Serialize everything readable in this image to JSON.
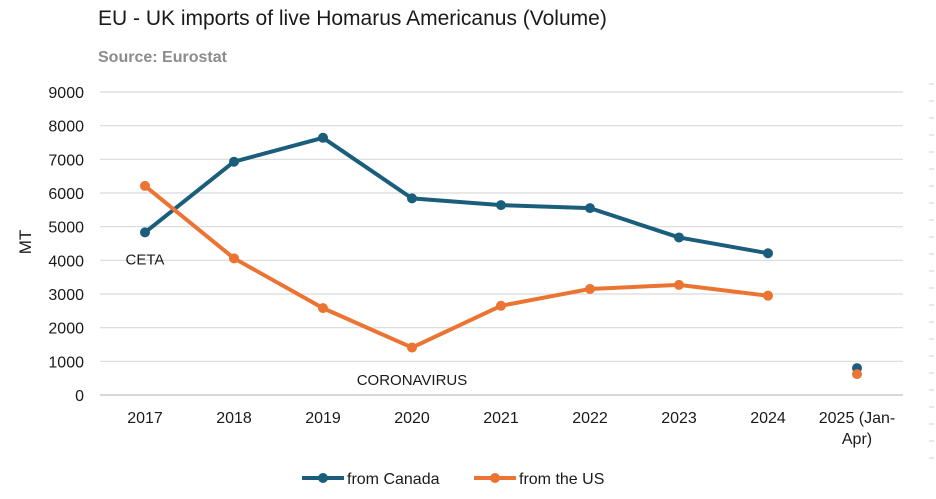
{
  "chart_data": {
    "type": "line",
    "title": "EU - UK imports of live Homarus Americanus (Volume)",
    "subtitle": "Source: Eurostat",
    "ylabel": "MT",
    "xlabel": "",
    "ylim": [
      0,
      9000
    ],
    "yticks": [
      0,
      1000,
      2000,
      3000,
      4000,
      5000,
      6000,
      7000,
      8000,
      9000
    ],
    "categories": [
      "2017",
      "2018",
      "2019",
      "2020",
      "2021",
      "2022",
      "2023",
      "2024",
      "2025 (Jan-Apr)"
    ],
    "series": [
      {
        "name": "from Canada",
        "color": "#1b5e7b",
        "values": [
          4830,
          6930,
          7640,
          5840,
          5640,
          5550,
          4680,
          4210,
          800
        ]
      },
      {
        "name": "from the US",
        "color": "#ec7432",
        "values": [
          6210,
          4060,
          2580,
          1410,
          2650,
          3150,
          3270,
          2950,
          620
        ]
      }
    ],
    "connected_points": 8,
    "annotations": [
      {
        "text": "CETA",
        "category": "2017",
        "value": 4050
      },
      {
        "text": "CORONAVIRUS",
        "category": "2020",
        "value": 480
      }
    ],
    "grid": true,
    "legend_position": "bottom"
  }
}
